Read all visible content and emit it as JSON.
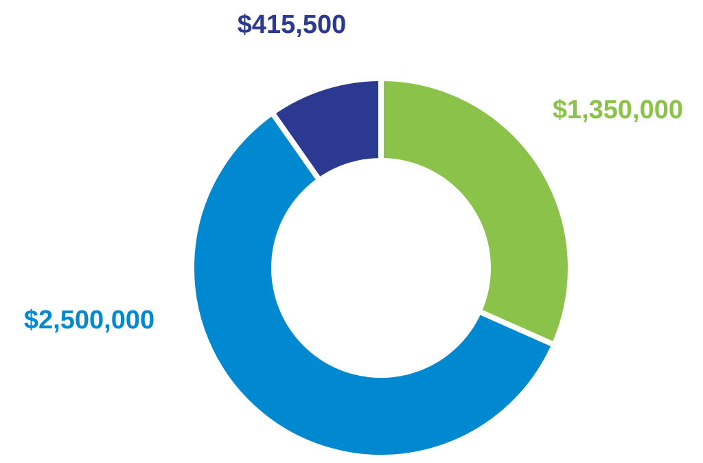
{
  "chart_data": {
    "type": "pie",
    "variant": "donut",
    "title": "",
    "series": [
      {
        "values": [
          1350000,
          2500000,
          415500
        ],
        "labels": [
          "$1,350,000",
          "$2,500,000",
          "$415,500"
        ],
        "colors": [
          "#8BC34A",
          "#0089D0",
          "#2B3990"
        ]
      }
    ],
    "start_angle_deg": 0,
    "direction": "clockwise",
    "legend": "none"
  }
}
